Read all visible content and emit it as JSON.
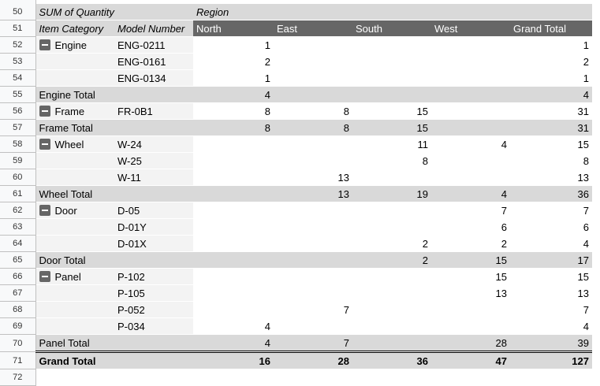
{
  "header": {
    "value_label": "SUM of Quantity",
    "column_field": "Region",
    "row_field_1": "Item Category",
    "row_field_2": "Model Number",
    "columns": [
      "North",
      "East",
      "South",
      "West",
      "Grand Total"
    ]
  },
  "first_row_number": 50,
  "rows": [
    {
      "type": "detail",
      "category": "Engine",
      "model": "ENG-0211",
      "values": [
        "1",
        "",
        "",
        "",
        "1"
      ]
    },
    {
      "type": "detail",
      "category": "",
      "model": "ENG-0161",
      "values": [
        "2",
        "",
        "",
        "",
        "2"
      ]
    },
    {
      "type": "detail",
      "category": "",
      "model": "ENG-0134",
      "values": [
        "1",
        "",
        "",
        "",
        "1"
      ]
    },
    {
      "type": "total",
      "label": "Engine Total",
      "values": [
        "4",
        "",
        "",
        "",
        "4"
      ]
    },
    {
      "type": "detail",
      "category": "Frame",
      "model": "FR-0B1",
      "values": [
        "8",
        "8",
        "15",
        "",
        "31"
      ]
    },
    {
      "type": "total",
      "label": "Frame Total",
      "values": [
        "8",
        "8",
        "15",
        "",
        "31"
      ]
    },
    {
      "type": "detail",
      "category": "Wheel",
      "model": "W-24",
      "values": [
        "",
        "",
        "11",
        "4",
        "15"
      ]
    },
    {
      "type": "detail",
      "category": "",
      "model": "W-25",
      "values": [
        "",
        "",
        "8",
        "",
        "8"
      ]
    },
    {
      "type": "detail",
      "category": "",
      "model": "W-11",
      "values": [
        "",
        "13",
        "",
        "",
        "13"
      ]
    },
    {
      "type": "total",
      "label": "Wheel Total",
      "values": [
        "",
        "13",
        "19",
        "4",
        "36"
      ]
    },
    {
      "type": "detail",
      "category": "Door",
      "model": "D-05",
      "values": [
        "",
        "",
        "",
        "7",
        "7"
      ]
    },
    {
      "type": "detail",
      "category": "",
      "model": "D-01Y",
      "values": [
        "",
        "",
        "",
        "6",
        "6"
      ]
    },
    {
      "type": "detail",
      "category": "",
      "model": "D-01X",
      "values": [
        "",
        "",
        "2",
        "2",
        "4"
      ]
    },
    {
      "type": "total",
      "label": "Door Total",
      "values": [
        "",
        "",
        "2",
        "15",
        "17"
      ]
    },
    {
      "type": "detail",
      "category": "Panel",
      "model": "P-102",
      "values": [
        "",
        "",
        "",
        "15",
        "15"
      ]
    },
    {
      "type": "detail",
      "category": "",
      "model": "P-105",
      "values": [
        "",
        "",
        "",
        "13",
        "13"
      ]
    },
    {
      "type": "detail",
      "category": "",
      "model": "P-052",
      "values": [
        "",
        "7",
        "",
        "",
        "7"
      ]
    },
    {
      "type": "detail",
      "category": "",
      "model": "P-034",
      "values": [
        "4",
        "",
        "",
        "",
        "4"
      ]
    },
    {
      "type": "total",
      "label": "Panel Total",
      "values": [
        "4",
        "7",
        "",
        "28",
        "39"
      ]
    },
    {
      "type": "grand",
      "label": "Grand Total",
      "values": [
        "16",
        "28",
        "36",
        "47",
        "127"
      ]
    }
  ],
  "colors": {
    "header_dark": "#666666",
    "total_bg": "#d9d9d9",
    "category_bg": "#f3f3f3"
  }
}
